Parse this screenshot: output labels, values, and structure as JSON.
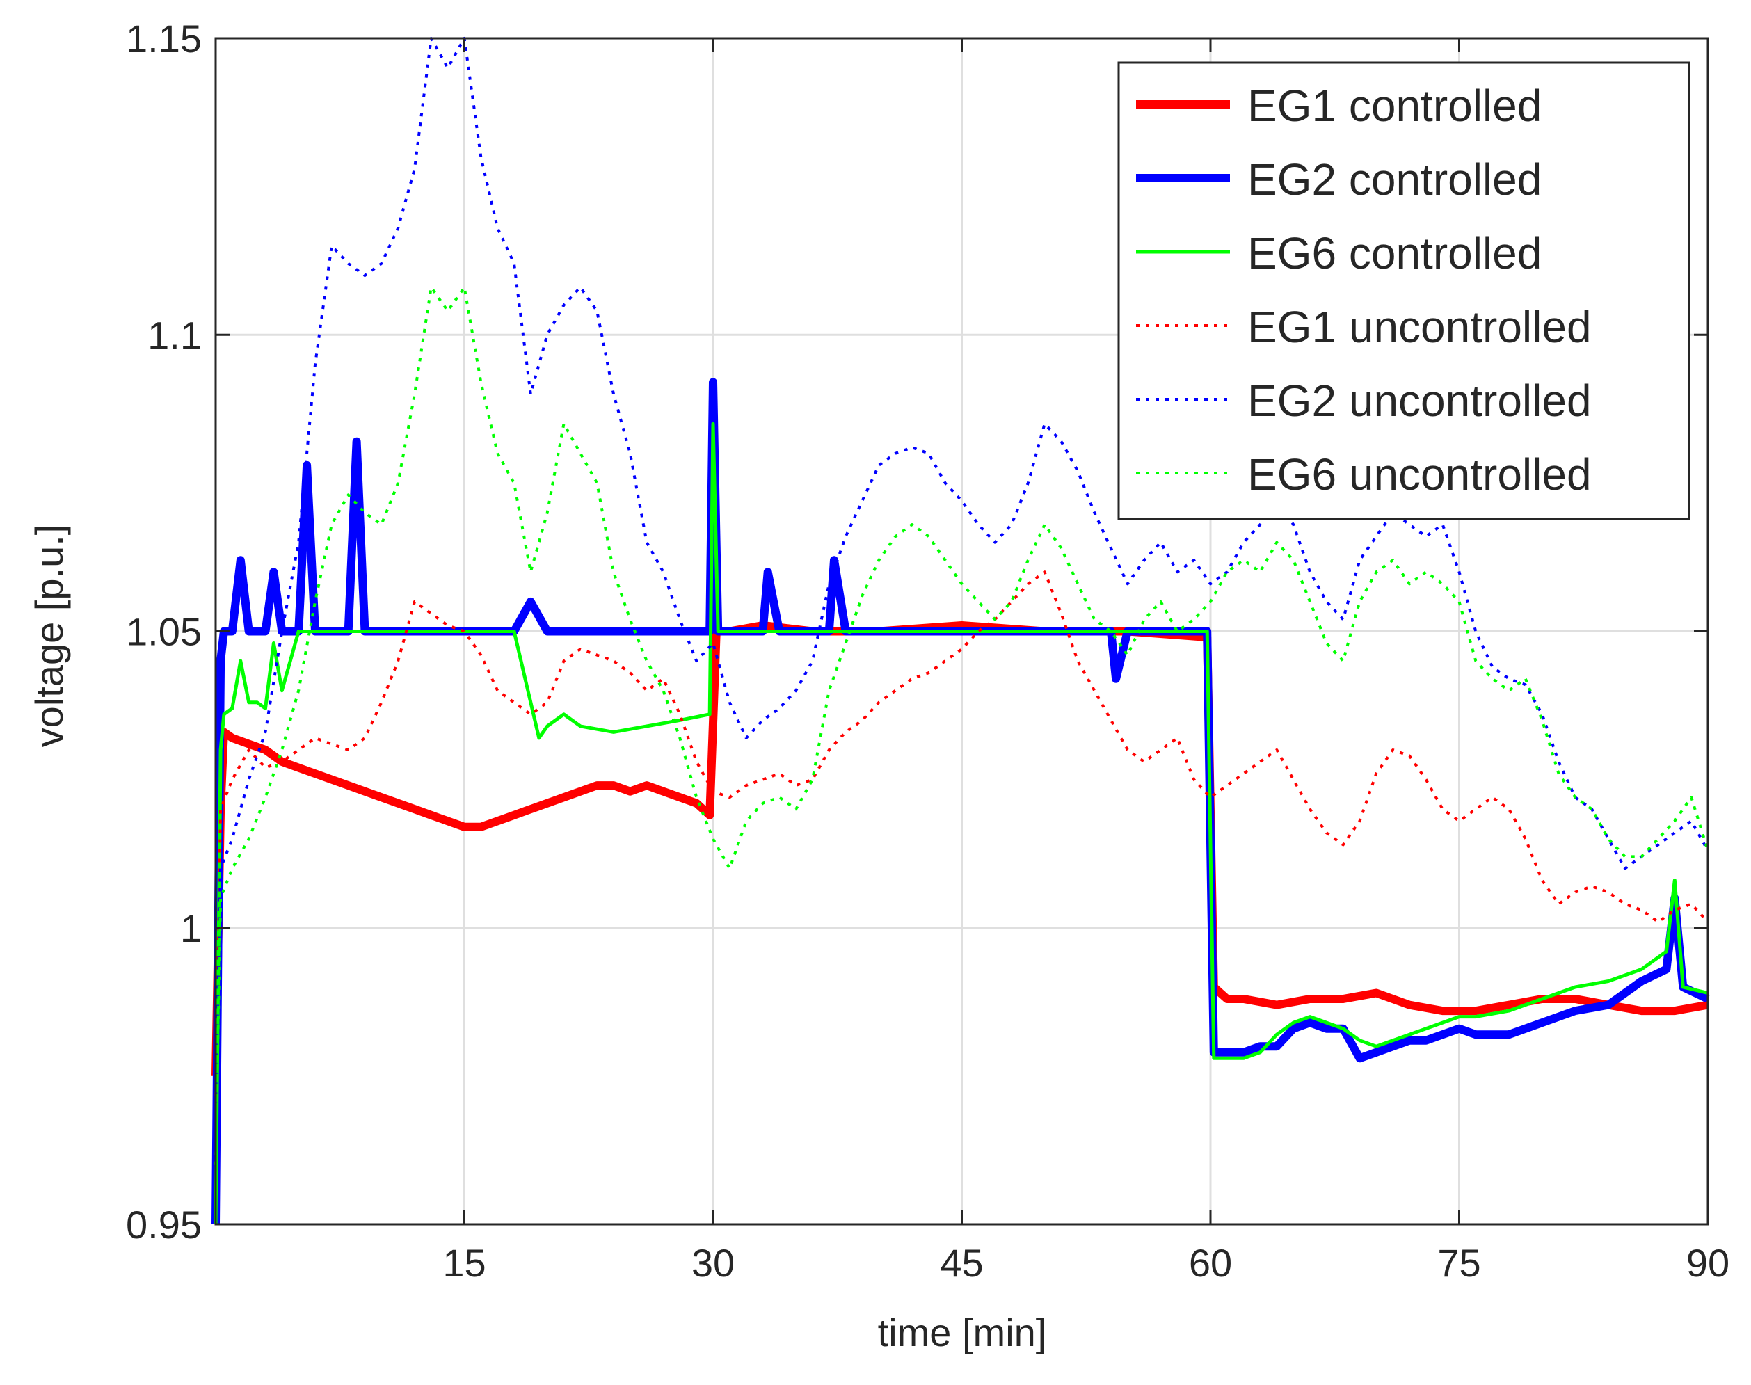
{
  "chart_data": {
    "type": "line",
    "title": "",
    "xlabel": "time [min]",
    "ylabel": "voltage [p.u.]",
    "xlim": [
      0,
      90
    ],
    "ylim": [
      0.95,
      1.15
    ],
    "xticks": [
      15,
      30,
      45,
      60,
      75,
      90
    ],
    "xtick_labels": [
      "15",
      "30",
      "45",
      "60",
      "75",
      "90"
    ],
    "yticks": [
      0.95,
      1.0,
      1.05,
      1.1,
      1.15
    ],
    "ytick_labels": [
      "0.95",
      "1",
      "1.05",
      "1.1",
      "1.15"
    ],
    "grid": true,
    "legend_position": "top-right",
    "series": [
      {
        "name": "EG1 controlled",
        "color": "#ff0000",
        "style": "solid",
        "weight": "bold",
        "x": [
          0,
          0.3,
          0.5,
          1,
          2,
          3,
          4,
          5,
          6,
          7,
          8,
          9,
          10,
          11,
          12,
          13,
          14,
          15,
          16,
          17,
          18,
          19,
          20,
          21,
          22,
          23,
          24,
          25,
          26,
          27,
          28,
          29,
          29.8,
          30.2,
          31,
          33,
          36,
          40,
          45,
          50,
          55,
          59.8,
          60.2,
          61,
          62,
          64,
          66,
          68,
          70,
          72,
          74,
          76,
          78,
          80,
          82,
          84,
          86,
          88,
          90
        ],
        "y": [
          0.975,
          1.02,
          1.033,
          1.032,
          1.031,
          1.03,
          1.028,
          1.027,
          1.026,
          1.025,
          1.024,
          1.023,
          1.022,
          1.021,
          1.02,
          1.019,
          1.018,
          1.017,
          1.017,
          1.018,
          1.019,
          1.02,
          1.021,
          1.022,
          1.023,
          1.024,
          1.024,
          1.023,
          1.024,
          1.023,
          1.022,
          1.021,
          1.019,
          1.05,
          1.05,
          1.051,
          1.05,
          1.05,
          1.051,
          1.05,
          1.05,
          1.049,
          0.99,
          0.988,
          0.988,
          0.987,
          0.988,
          0.988,
          0.989,
          0.987,
          0.986,
          0.986,
          0.987,
          0.988,
          0.988,
          0.987,
          0.986,
          0.986,
          0.987
        ]
      },
      {
        "name": "EG2 controlled",
        "color": "#0000ff",
        "style": "solid",
        "weight": "bold",
        "x": [
          0,
          0.3,
          0.5,
          1,
          1.5,
          2,
          3,
          3.5,
          4,
          5,
          5.5,
          6,
          8,
          8.5,
          9,
          12,
          15,
          18,
          19,
          20,
          22,
          25,
          29.8,
          30,
          30.3,
          31,
          33,
          33.3,
          34,
          37,
          37.3,
          38,
          45,
          50,
          54,
          54.3,
          55,
          59.8,
          60.2,
          61,
          62,
          63,
          64,
          65,
          66,
          67,
          68,
          69,
          70,
          71,
          72,
          73,
          74,
          75,
          76,
          78,
          80,
          82,
          84,
          86,
          87.5,
          88,
          88.5,
          90
        ],
        "y": [
          0.95,
          1.045,
          1.05,
          1.05,
          1.062,
          1.05,
          1.05,
          1.06,
          1.05,
          1.05,
          1.078,
          1.05,
          1.05,
          1.082,
          1.05,
          1.05,
          1.05,
          1.05,
          1.055,
          1.05,
          1.05,
          1.05,
          1.05,
          1.092,
          1.05,
          1.05,
          1.05,
          1.06,
          1.05,
          1.05,
          1.062,
          1.05,
          1.05,
          1.05,
          1.05,
          1.042,
          1.05,
          1.05,
          0.979,
          0.979,
          0.979,
          0.98,
          0.98,
          0.983,
          0.984,
          0.983,
          0.983,
          0.978,
          0.979,
          0.98,
          0.981,
          0.981,
          0.982,
          0.983,
          0.982,
          0.982,
          0.984,
          0.986,
          0.987,
          0.991,
          0.993,
          1.005,
          0.99,
          0.988
        ]
      },
      {
        "name": "EG6 controlled",
        "color": "#00ff00",
        "style": "solid",
        "weight": "normal",
        "x": [
          0,
          0.3,
          0.5,
          1,
          1.5,
          2,
          2.5,
          3,
          3.5,
          4,
          5,
          6,
          8,
          10,
          12,
          15,
          18,
          19.5,
          20,
          21,
          22,
          24,
          26,
          28,
          29.8,
          30,
          30.3,
          31,
          33,
          36,
          40,
          45,
          50,
          55,
          59.8,
          60.2,
          61,
          62,
          63,
          64,
          65,
          66,
          67,
          68,
          69,
          70,
          71,
          72,
          73,
          74,
          75,
          76,
          78,
          80,
          82,
          84,
          86,
          87.5,
          88,
          88.5,
          90
        ],
        "y": [
          0.95,
          1.03,
          1.036,
          1.037,
          1.045,
          1.038,
          1.038,
          1.037,
          1.048,
          1.04,
          1.05,
          1.05,
          1.05,
          1.05,
          1.05,
          1.05,
          1.05,
          1.032,
          1.034,
          1.036,
          1.034,
          1.033,
          1.034,
          1.035,
          1.036,
          1.085,
          1.05,
          1.05,
          1.05,
          1.05,
          1.05,
          1.05,
          1.05,
          1.05,
          1.05,
          0.978,
          0.978,
          0.978,
          0.979,
          0.982,
          0.984,
          0.985,
          0.984,
          0.983,
          0.981,
          0.98,
          0.981,
          0.982,
          0.983,
          0.984,
          0.985,
          0.985,
          0.986,
          0.988,
          0.99,
          0.991,
          0.993,
          0.996,
          1.008,
          0.99,
          0.989
        ]
      },
      {
        "name": "EG1 uncontrolled",
        "color": "#ff0000",
        "style": "dotted",
        "weight": "normal",
        "x": [
          0,
          0.3,
          1,
          2,
          3,
          4,
          5,
          6,
          7,
          8,
          9,
          10,
          11,
          12,
          13,
          14,
          15,
          16,
          17,
          18,
          19,
          20,
          21,
          22,
          23,
          24,
          25,
          26,
          27,
          28,
          29,
          30,
          31,
          32,
          33,
          34,
          35,
          36,
          37,
          38,
          39,
          40,
          41,
          42,
          43,
          44,
          45,
          46,
          47,
          48,
          49,
          50,
          51,
          52,
          53,
          54,
          55,
          56,
          57,
          58,
          59,
          60,
          61,
          62,
          63,
          64,
          65,
          66,
          67,
          68,
          69,
          70,
          71,
          72,
          73,
          74,
          75,
          76,
          77,
          78,
          79,
          80,
          81,
          82,
          83,
          84,
          85,
          86,
          87,
          88,
          89,
          90
        ],
        "y": [
          0.97,
          1.02,
          1.025,
          1.03,
          1.027,
          1.028,
          1.03,
          1.032,
          1.031,
          1.03,
          1.032,
          1.038,
          1.045,
          1.055,
          1.053,
          1.051,
          1.05,
          1.046,
          1.04,
          1.038,
          1.036,
          1.038,
          1.045,
          1.047,
          1.046,
          1.045,
          1.043,
          1.04,
          1.042,
          1.036,
          1.028,
          1.023,
          1.022,
          1.024,
          1.025,
          1.026,
          1.024,
          1.025,
          1.03,
          1.033,
          1.035,
          1.038,
          1.04,
          1.042,
          1.043,
          1.045,
          1.047,
          1.05,
          1.052,
          1.055,
          1.058,
          1.06,
          1.053,
          1.045,
          1.04,
          1.035,
          1.03,
          1.028,
          1.03,
          1.032,
          1.025,
          1.022,
          1.024,
          1.026,
          1.028,
          1.03,
          1.025,
          1.02,
          1.016,
          1.014,
          1.018,
          1.026,
          1.03,
          1.029,
          1.025,
          1.02,
          1.018,
          1.02,
          1.022,
          1.02,
          1.015,
          1.008,
          1.004,
          1.006,
          1.007,
          1.006,
          1.004,
          1.003,
          1.001,
          1.003,
          1.004,
          1.001
        ]
      },
      {
        "name": "EG2 uncontrolled",
        "color": "#0000ff",
        "style": "dotted",
        "weight": "normal",
        "x": [
          0,
          0.3,
          1,
          2,
          3,
          4,
          5,
          6,
          7,
          8,
          9,
          10,
          11,
          12,
          13,
          14,
          15,
          16,
          17,
          18,
          19,
          20,
          21,
          22,
          23,
          24,
          25,
          26,
          27,
          28,
          29,
          30,
          31,
          32,
          33,
          34,
          35,
          36,
          37,
          38,
          39,
          40,
          41,
          42,
          43,
          44,
          45,
          46,
          47,
          48,
          49,
          50,
          51,
          52,
          53,
          54,
          55,
          56,
          57,
          58,
          59,
          60,
          61,
          62,
          63,
          64,
          65,
          66,
          67,
          68,
          69,
          70,
          71,
          72,
          73,
          74,
          75,
          76,
          77,
          78,
          79,
          80,
          81,
          82,
          83,
          84,
          85,
          86,
          87,
          88,
          89,
          90
        ],
        "y": [
          0.97,
          1.01,
          1.015,
          1.025,
          1.033,
          1.05,
          1.065,
          1.095,
          1.115,
          1.112,
          1.11,
          1.112,
          1.118,
          1.128,
          1.15,
          1.145,
          1.15,
          1.13,
          1.118,
          1.112,
          1.09,
          1.1,
          1.105,
          1.108,
          1.104,
          1.09,
          1.08,
          1.065,
          1.06,
          1.052,
          1.045,
          1.048,
          1.038,
          1.032,
          1.035,
          1.037,
          1.04,
          1.045,
          1.058,
          1.066,
          1.072,
          1.078,
          1.08,
          1.081,
          1.08,
          1.075,
          1.072,
          1.068,
          1.065,
          1.068,
          1.075,
          1.085,
          1.082,
          1.077,
          1.07,
          1.064,
          1.058,
          1.062,
          1.065,
          1.06,
          1.062,
          1.058,
          1.06,
          1.065,
          1.068,
          1.072,
          1.068,
          1.06,
          1.055,
          1.052,
          1.062,
          1.066,
          1.07,
          1.068,
          1.066,
          1.068,
          1.06,
          1.05,
          1.044,
          1.042,
          1.041,
          1.036,
          1.028,
          1.022,
          1.02,
          1.015,
          1.01,
          1.012,
          1.014,
          1.016,
          1.018,
          1.013
        ]
      },
      {
        "name": "EG6 uncontrolled",
        "color": "#00ff00",
        "style": "dotted",
        "weight": "normal",
        "x": [
          0,
          0.3,
          1,
          2,
          3,
          4,
          5,
          6,
          7,
          8,
          9,
          10,
          11,
          12,
          13,
          14,
          15,
          16,
          17,
          18,
          19,
          20,
          21,
          22,
          23,
          24,
          25,
          26,
          27,
          28,
          29,
          30,
          31,
          32,
          33,
          34,
          35,
          36,
          37,
          38,
          39,
          40,
          41,
          42,
          43,
          44,
          45,
          46,
          47,
          48,
          49,
          50,
          51,
          52,
          53,
          54,
          55,
          56,
          57,
          58,
          59,
          60,
          61,
          62,
          63,
          64,
          65,
          66,
          67,
          68,
          69,
          70,
          71,
          72,
          73,
          74,
          75,
          76,
          77,
          78,
          79,
          80,
          81,
          82,
          83,
          84,
          85,
          86,
          87,
          88,
          89,
          90
        ],
        "y": [
          0.96,
          1.005,
          1.01,
          1.015,
          1.022,
          1.03,
          1.04,
          1.055,
          1.068,
          1.073,
          1.07,
          1.068,
          1.075,
          1.09,
          1.108,
          1.104,
          1.108,
          1.092,
          1.08,
          1.075,
          1.06,
          1.07,
          1.085,
          1.08,
          1.075,
          1.06,
          1.052,
          1.045,
          1.04,
          1.032,
          1.022,
          1.015,
          1.01,
          1.018,
          1.021,
          1.022,
          1.02,
          1.025,
          1.04,
          1.048,
          1.056,
          1.062,
          1.066,
          1.068,
          1.066,
          1.062,
          1.058,
          1.055,
          1.052,
          1.055,
          1.062,
          1.068,
          1.064,
          1.058,
          1.052,
          1.05,
          1.046,
          1.052,
          1.055,
          1.05,
          1.052,
          1.055,
          1.06,
          1.062,
          1.06,
          1.065,
          1.062,
          1.055,
          1.048,
          1.045,
          1.055,
          1.06,
          1.062,
          1.058,
          1.06,
          1.058,
          1.055,
          1.045,
          1.042,
          1.04,
          1.042,
          1.035,
          1.026,
          1.022,
          1.02,
          1.015,
          1.012,
          1.012,
          1.015,
          1.018,
          1.022,
          1.013
        ]
      }
    ]
  }
}
